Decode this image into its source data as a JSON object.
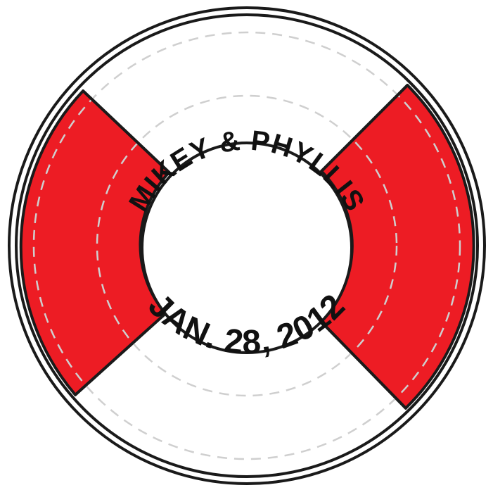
{
  "emblem": {
    "names": "MIKEY & PHYLLIS",
    "date": "JAN. 28, 2012"
  },
  "colors": {
    "red": "#ED1C24",
    "outline": "#1A1A1A",
    "white": "#FFFFFF",
    "stitch": "#CFCFCF"
  }
}
